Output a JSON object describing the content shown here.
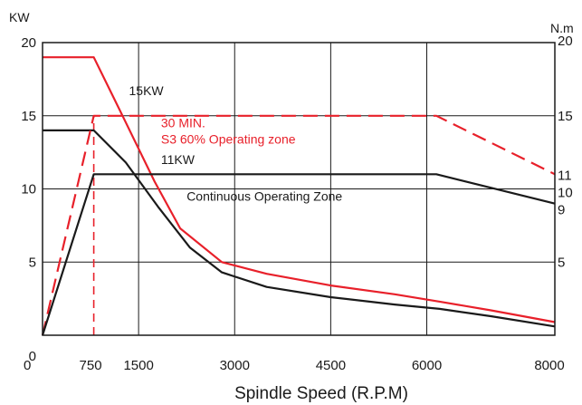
{
  "chart_data": {
    "type": "line",
    "title": "",
    "xlabel": "Spindle Speed (R.P.M)",
    "ylabel_left": "KW",
    "ylabel_right": "N.m",
    "xlim": [
      0,
      8000
    ],
    "ylim": [
      0,
      20
    ],
    "grid": true,
    "x_ticks": [
      {
        "value": 0,
        "label": "0"
      },
      {
        "value": 750,
        "label": "750"
      },
      {
        "value": 1500,
        "label": "1500"
      },
      {
        "value": 3000,
        "label": "3000"
      },
      {
        "value": 4500,
        "label": "4500"
      },
      {
        "value": 6000,
        "label": "6000"
      },
      {
        "value": 8000,
        "label": "8000"
      }
    ],
    "y_ticks_left": [
      {
        "value": 0,
        "label": "0"
      },
      {
        "value": 5,
        "label": "5"
      },
      {
        "value": 10,
        "label": "10"
      },
      {
        "value": 15,
        "label": "15"
      },
      {
        "value": 20,
        "label": "20"
      }
    ],
    "y_ticks_right": [
      {
        "value": 5,
        "label": "5"
      },
      {
        "value": 9,
        "label": "9"
      },
      {
        "value": 10,
        "label": "10"
      },
      {
        "value": 11,
        "label": "11"
      },
      {
        "value": 15,
        "label": "15"
      },
      {
        "value": 20,
        "label": "20"
      }
    ],
    "series": [
      {
        "name": "",
        "color": "#e8202a",
        "dash": false,
        "points": [
          [
            0,
            19
          ],
          [
            800,
            19
          ],
          [
            1250,
            15
          ],
          [
            1750,
            10.5
          ],
          [
            2150,
            7.3
          ],
          [
            2800,
            5
          ],
          [
            3500,
            4.2
          ],
          [
            4500,
            3.4
          ],
          [
            5500,
            2.8
          ],
          [
            6200,
            2.3
          ],
          [
            7000,
            1.7
          ],
          [
            8000,
            0.9
          ]
        ]
      },
      {
        "name": "",
        "color": "#1a1a1a",
        "dash": false,
        "points": [
          [
            0,
            14
          ],
          [
            800,
            14
          ],
          [
            1300,
            11.8
          ],
          [
            1800,
            8.8
          ],
          [
            2300,
            6
          ],
          [
            2800,
            4.3
          ],
          [
            3500,
            3.3
          ],
          [
            4500,
            2.6
          ],
          [
            5500,
            2.1
          ],
          [
            6200,
            1.8
          ],
          [
            7000,
            1.3
          ],
          [
            8000,
            0.6
          ]
        ]
      },
      {
        "name": "",
        "color": "#e8202a",
        "dash": true,
        "points": [
          [
            0,
            0
          ],
          [
            800,
            15
          ],
          [
            6150,
            15
          ],
          [
            8000,
            11
          ]
        ]
      },
      {
        "name": "",
        "color": "#1a1a1a",
        "dash": false,
        "points": [
          [
            0,
            0
          ],
          [
            800,
            11
          ],
          [
            6150,
            11
          ],
          [
            8000,
            9
          ]
        ]
      }
    ],
    "reference_lines": [
      {
        "x": 800,
        "y_from": 0,
        "y_to": 15,
        "color": "#e8202a",
        "dash": true
      }
    ],
    "annotations": [
      {
        "text": "15KW",
        "x": 1350,
        "y": 16.4,
        "color": "#1a1a1a"
      },
      {
        "text": "30 MIN.",
        "x": 1850,
        "y": 14.2,
        "color": "#e8202a"
      },
      {
        "text": "S3  60% Operating zone",
        "x": 1850,
        "y": 13.1,
        "color": "#e8202a"
      },
      {
        "text": "11KW",
        "x": 1850,
        "y": 11.7,
        "color": "#1a1a1a"
      },
      {
        "text": "Continuous Operating Zone",
        "x": 2250,
        "y": 9.2,
        "color": "#1a1a1a"
      }
    ]
  }
}
